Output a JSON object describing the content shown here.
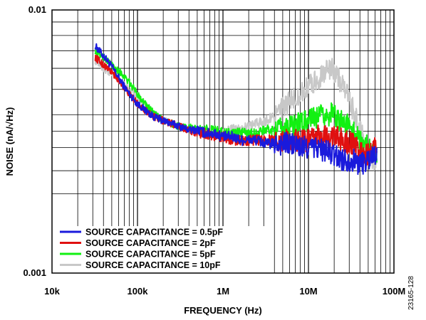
{
  "chart_data": {
    "type": "line",
    "xlabel": "FREQUENCY (Hz)",
    "ylabel": "NOISE (nA/√Hz)",
    "x_scale": "log",
    "y_scale": "log",
    "xlim": [
      10000,
      100000000
    ],
    "ylim": [
      0.001,
      0.01
    ],
    "x_ticks": [
      {
        "value": 10000,
        "label": "10k"
      },
      {
        "value": 100000,
        "label": "100k"
      },
      {
        "value": 1000000,
        "label": "1M"
      },
      {
        "value": 10000000,
        "label": "10M"
      },
      {
        "value": 100000000,
        "label": "100M"
      }
    ],
    "y_ticks": [
      {
        "value": 0.001,
        "label": "0.001"
      },
      {
        "value": 0.01,
        "label": "0.01"
      }
    ],
    "grid": true,
    "legend_position": "bottom-left",
    "figure_id": "23165-128",
    "series": [
      {
        "name": "SOURCE CAPACITANCE = 0.5pF",
        "color": "#1a1adc",
        "x": [
          32000,
          40000,
          50000,
          63000,
          80000,
          100000,
          130000,
          160000,
          200000,
          250000,
          320000,
          400000,
          500000,
          630000,
          800000,
          1000000,
          1300000,
          1600000,
          2000000,
          2500000,
          3200000,
          4000000,
          5000000,
          6300000,
          8000000,
          10000000,
          13000000,
          16000000,
          20000000,
          25000000,
          32000000,
          40000000,
          50000000,
          63000000
        ],
        "y": [
          0.0073,
          0.0067,
          0.0061,
          0.0054,
          0.0048,
          0.0044,
          0.0041,
          0.0039,
          0.0038,
          0.0037,
          0.0036,
          0.0035,
          0.0035,
          0.0034,
          0.0034,
          0.0033,
          0.0033,
          0.0032,
          0.0032,
          0.0032,
          0.0031,
          0.0031,
          0.0031,
          0.0031,
          0.003,
          0.003,
          0.003,
          0.0029,
          0.0028,
          0.0027,
          0.0027,
          0.0026,
          0.0027,
          0.0029
        ]
      },
      {
        "name": "SOURCE CAPACITANCE = 2pF",
        "color": "#e01010",
        "x": [
          32000,
          40000,
          50000,
          63000,
          80000,
          100000,
          130000,
          160000,
          200000,
          250000,
          320000,
          400000,
          500000,
          630000,
          800000,
          1000000,
          1300000,
          1600000,
          2000000,
          2500000,
          3200000,
          4000000,
          5000000,
          6300000,
          8000000,
          10000000,
          13000000,
          16000000,
          20000000,
          25000000,
          32000000,
          40000000,
          50000000,
          63000000
        ],
        "y": [
          0.0066,
          0.0062,
          0.0058,
          0.0053,
          0.0048,
          0.0044,
          0.0041,
          0.0039,
          0.0038,
          0.0037,
          0.0036,
          0.0035,
          0.0034,
          0.0034,
          0.0033,
          0.0033,
          0.0032,
          0.0032,
          0.0032,
          0.0032,
          0.0032,
          0.0032,
          0.0032,
          0.0032,
          0.0032,
          0.0032,
          0.0033,
          0.0033,
          0.0033,
          0.0032,
          0.0031,
          0.0029,
          0.0028,
          0.003
        ]
      },
      {
        "name": "SOURCE CAPACITANCE = 5pF",
        "color": "#12f012",
        "x": [
          32000,
          40000,
          50000,
          63000,
          80000,
          100000,
          130000,
          160000,
          200000,
          250000,
          320000,
          400000,
          500000,
          630000,
          800000,
          1000000,
          1300000,
          1600000,
          2000000,
          2500000,
          3200000,
          4000000,
          5000000,
          6300000,
          8000000,
          10000000,
          13000000,
          16000000,
          20000000,
          25000000,
          32000000,
          40000000,
          50000000,
          63000000
        ],
        "y": [
          0.007,
          0.0066,
          0.0062,
          0.0058,
          0.0053,
          0.0048,
          0.0043,
          0.004,
          0.0038,
          0.0037,
          0.0036,
          0.0036,
          0.0035,
          0.0035,
          0.0035,
          0.0034,
          0.0034,
          0.0034,
          0.0034,
          0.0034,
          0.0035,
          0.0035,
          0.0035,
          0.0036,
          0.0037,
          0.0038,
          0.0039,
          0.004,
          0.004,
          0.0038,
          0.0035,
          0.0032,
          0.003,
          0.0029
        ]
      },
      {
        "name": "SOURCE CAPACITANCE = 10pF",
        "color": "#c8c8c8",
        "x": [
          32000,
          40000,
          50000,
          63000,
          80000,
          100000,
          130000,
          160000,
          200000,
          250000,
          320000,
          400000,
          500000,
          630000,
          800000,
          1000000,
          1300000,
          1600000,
          2000000,
          2500000,
          3200000,
          4000000,
          5000000,
          6300000,
          8000000,
          10000000,
          13000000,
          16000000,
          20000000,
          25000000,
          32000000,
          40000000,
          50000000,
          63000000
        ],
        "y": [
          0.0064,
          0.006,
          0.0057,
          0.0053,
          0.005,
          0.0047,
          0.0043,
          0.004,
          0.0038,
          0.0037,
          0.0036,
          0.0035,
          0.0035,
          0.0034,
          0.0034,
          0.0034,
          0.0035,
          0.0035,
          0.0036,
          0.0037,
          0.0038,
          0.004,
          0.0042,
          0.0045,
          0.0048,
          0.0051,
          0.0055,
          0.0059,
          0.0059,
          0.0052,
          0.0043,
          0.0035,
          0.0029,
          0.0026
        ]
      }
    ]
  }
}
